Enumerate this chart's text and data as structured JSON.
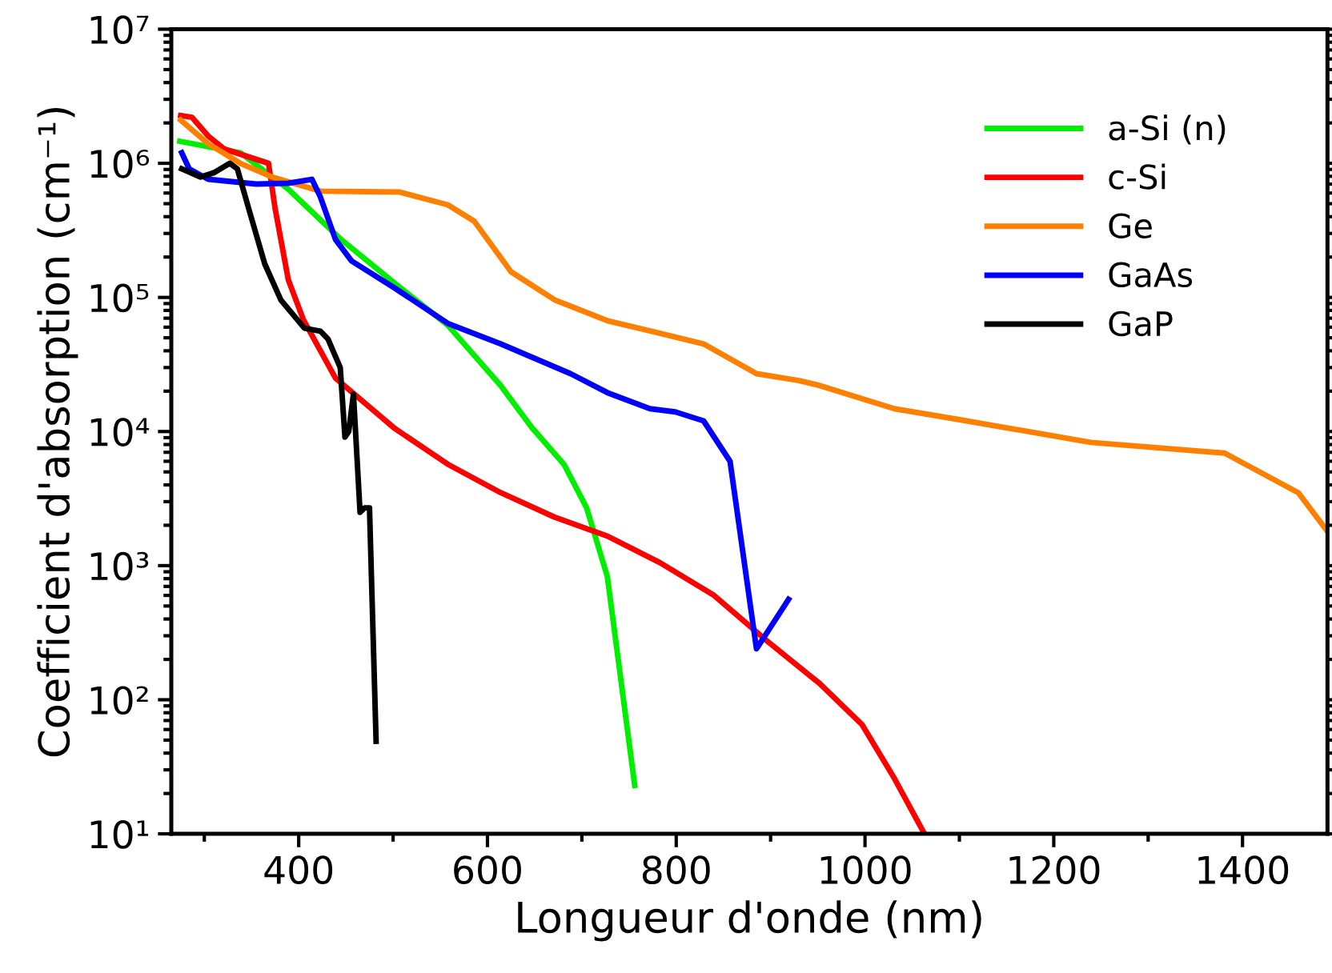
{
  "chart_data": {
    "type": "line",
    "xlabel": "Longueur d'onde (nm)",
    "ylabel": "Coefficient d'absorption (cm⁻¹)",
    "log": "y",
    "xlim": [
      265,
      1490
    ],
    "ylim": [
      10,
      10000000
    ],
    "xticks": [
      400,
      600,
      800,
      1000,
      1200,
      1400
    ],
    "yticks": [
      {
        "value": 10,
        "label": "10¹"
      },
      {
        "value": 100,
        "label": "10²"
      },
      {
        "value": 1000,
        "label": "10³"
      },
      {
        "value": 10000,
        "label": "10⁴"
      },
      {
        "value": 100000,
        "label": "10⁵"
      },
      {
        "value": 1000000,
        "label": "10⁶"
      },
      {
        "value": 10000000,
        "label": "10⁷"
      }
    ],
    "grid": false,
    "legend": "top right",
    "marker": "none",
    "line_style": "solid",
    "series": [
      {
        "name": "a-Si (n)",
        "color": "#00ee00",
        "x": [
          274,
          338,
          389,
          445,
          502,
          558,
          614,
          647,
          681,
          705,
          727,
          756
        ],
        "values": [
          1460000,
          1200000,
          640000,
          270000,
          127000,
          62000,
          22000,
          10700,
          5700,
          2700,
          830,
          23
        ]
      },
      {
        "name": "c-Si",
        "color": "#ff0000",
        "x": [
          275,
          287,
          304,
          321,
          355,
          368,
          375,
          389,
          405,
          439,
          502,
          558,
          614,
          671,
          727,
          783,
          840,
          896,
          952,
          997,
          1031,
          1063
        ],
        "values": [
          2270000,
          2200000,
          1600000,
          1280000,
          1070000,
          1000000,
          460000,
          135000,
          68000,
          25000,
          10500,
          5700,
          3500,
          2300,
          1660,
          1050,
          600,
          275,
          132,
          65,
          26,
          10
        ]
      },
      {
        "name": "Ge",
        "color": "#ff8000",
        "x": [
          275,
          304,
          338,
          372,
          423,
          507,
          558,
          586,
          625,
          671,
          727,
          783,
          829,
          885,
          930,
          952,
          1031,
          1099,
          1239,
          1381,
          1459,
          1490
        ],
        "values": [
          2100000,
          1400000,
          1000000,
          790000,
          620000,
          610000,
          490000,
          370000,
          155000,
          96000,
          67000,
          54000,
          45000,
          27000,
          24000,
          22000,
          14800,
          12300,
          8300,
          6900,
          3500,
          1800
        ]
      },
      {
        "name": "GaAs",
        "color": "#0000ff",
        "x": [
          276,
          284,
          304,
          355,
          389,
          414,
          423,
          439,
          456,
          502,
          558,
          614,
          688,
          727,
          772,
          799,
          829,
          857,
          885,
          919
        ],
        "values": [
          1200000,
          910000,
          760000,
          700000,
          710000,
          760000,
          560000,
          270000,
          187000,
          117000,
          64000,
          45000,
          27000,
          19500,
          14800,
          14000,
          12000,
          6000,
          240,
          560
        ]
      },
      {
        "name": "GaP",
        "color": "#000000",
        "x": [
          276,
          296,
          310,
          327,
          335,
          347,
          364,
          381,
          406,
          423,
          431,
          444,
          449,
          453,
          458,
          465,
          470,
          475,
          482
        ],
        "values": [
          910000,
          790000,
          850000,
          1000000,
          910000,
          460000,
          178000,
          96000,
          59000,
          56000,
          49000,
          30000,
          9100,
          10000,
          19000,
          2500,
          2700,
          2700,
          49
        ]
      }
    ]
  }
}
